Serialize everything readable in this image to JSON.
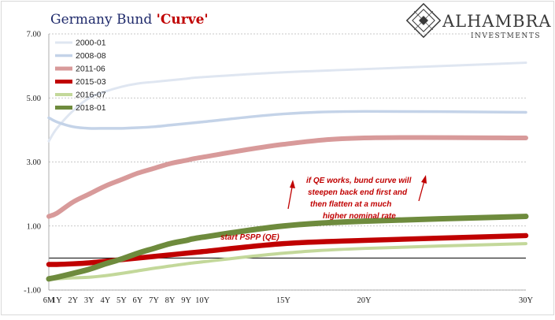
{
  "title": {
    "plain": "Germany Bund ",
    "accent": "'Curve'"
  },
  "logo": {
    "name": "ALHAMBRA",
    "sub": "INVESTMENTS"
  },
  "chart_data": {
    "type": "line",
    "title": "Germany Bund 'Curve'",
    "xlabel": "",
    "ylabel": "",
    "ylim": [
      -1,
      7
    ],
    "y_ticks": [
      "-1.00",
      "1.00",
      "3.00",
      "5.00",
      "7.00"
    ],
    "y_tick_values": [
      -1,
      1,
      3,
      5,
      7
    ],
    "zero_line": true,
    "grid": "horizontal dashed",
    "legend_position": "top-left",
    "categories": [
      "6M",
      "1Y",
      "2Y",
      "3Y",
      "4Y",
      "5Y",
      "6Y",
      "7Y",
      "8Y",
      "9Y",
      "10Y",
      "15Y",
      "20Y",
      "30Y"
    ],
    "x_years": [
      0.5,
      1,
      2,
      3,
      4,
      5,
      6,
      7,
      8,
      9,
      10,
      15,
      20,
      30
    ],
    "series": [
      {
        "name": "2000-01",
        "color": "#dfe6f1",
        "width": 3,
        "values": [
          3.65,
          4.05,
          4.6,
          5.0,
          5.2,
          5.35,
          5.45,
          5.5,
          5.55,
          5.6,
          5.65,
          5.8,
          5.9,
          6.1
        ]
      },
      {
        "name": "2008-08",
        "color": "#c4d3e8",
        "width": 3.5,
        "values": [
          4.38,
          4.25,
          4.1,
          4.05,
          4.05,
          4.05,
          4.07,
          4.1,
          4.15,
          4.2,
          4.25,
          4.5,
          4.58,
          4.55
        ]
      },
      {
        "name": "2011-06",
        "color": "#d89a9a",
        "width": 6,
        "values": [
          1.3,
          1.4,
          1.75,
          2.0,
          2.25,
          2.45,
          2.65,
          2.8,
          2.95,
          3.05,
          3.15,
          3.55,
          3.75,
          3.75
        ]
      },
      {
        "name": "2015-03",
        "color": "#c00000",
        "width": 6.5,
        "values": [
          -0.2,
          -0.2,
          -0.18,
          -0.15,
          -0.1,
          -0.05,
          0.0,
          0.05,
          0.1,
          0.15,
          0.2,
          0.45,
          0.55,
          0.7
        ]
      },
      {
        "name": "2016-07",
        "color": "#c3d89a",
        "width": 4,
        "values": [
          -0.65,
          -0.65,
          -0.62,
          -0.6,
          -0.55,
          -0.48,
          -0.4,
          -0.32,
          -0.25,
          -0.18,
          -0.12,
          0.15,
          0.3,
          0.45
        ]
      },
      {
        "name": "2018-01",
        "color": "#6e8b3d",
        "width": 7,
        "values": [
          -0.65,
          -0.6,
          -0.48,
          -0.35,
          -0.18,
          -0.03,
          0.15,
          0.3,
          0.45,
          0.55,
          0.65,
          1.0,
          1.15,
          1.3
        ]
      }
    ],
    "annotations": [
      {
        "text": "start PSPP (QE)"
      },
      {
        "lines": [
          "if QE works, bund curve will",
          "steepen back end first and",
          "then flatten at a much",
          "higher nominal rate"
        ]
      }
    ]
  }
}
